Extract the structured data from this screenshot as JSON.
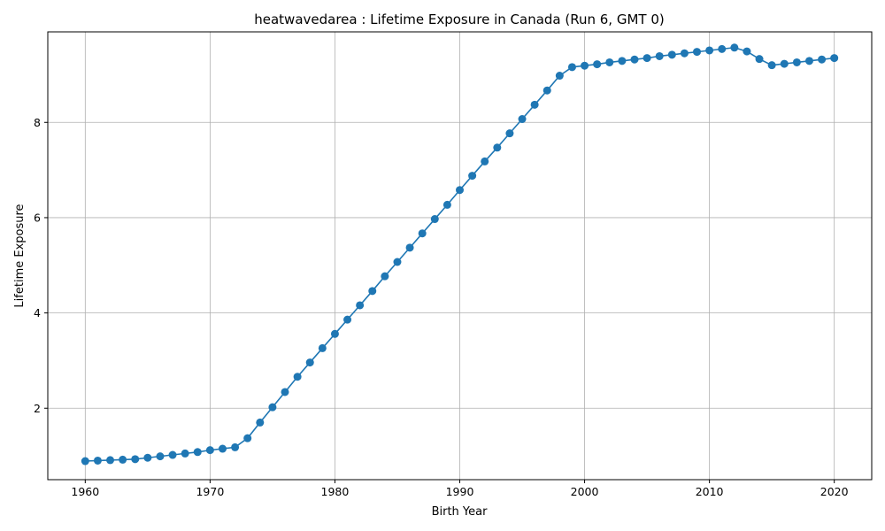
{
  "chart_data": {
    "type": "line",
    "title": "heatwavedarea : Lifetime Exposure in Canada (Run 6, GMT 0)",
    "xlabel": "Birth Year",
    "ylabel": "Lifetime Exposure",
    "xlim": [
      1957,
      2023
    ],
    "ylim": [
      0.5,
      9.9
    ],
    "xticks": [
      1960,
      1970,
      1980,
      1990,
      2000,
      2010,
      2020
    ],
    "yticks": [
      2,
      4,
      6,
      8
    ],
    "grid": true,
    "marker": "circle",
    "color": "#1f77b4",
    "series": [
      {
        "x": [
          1960,
          1961,
          1962,
          1963,
          1964,
          1965,
          1966,
          1967,
          1968,
          1969,
          1970,
          1971,
          1972,
          1973,
          1974,
          1975,
          1976,
          1977,
          1978,
          1979,
          1980,
          1981,
          1982,
          1983,
          1984,
          1985,
          1986,
          1987,
          1988,
          1989,
          1990,
          1991,
          1992,
          1993,
          1994,
          1995,
          1996,
          1997,
          1998,
          1999,
          2000,
          2001,
          2002,
          2003,
          2004,
          2005,
          2006,
          2007,
          2008,
          2009,
          2010,
          2011,
          2012,
          2013,
          2014,
          2015,
          2016,
          2017,
          2018,
          2019,
          2020
        ],
        "values": [
          0.89,
          0.9,
          0.91,
          0.92,
          0.93,
          0.96,
          0.99,
          1.02,
          1.05,
          1.08,
          1.12,
          1.15,
          1.18,
          1.37,
          1.7,
          2.02,
          2.34,
          2.66,
          2.96,
          3.26,
          3.56,
          3.86,
          4.16,
          4.46,
          4.77,
          5.07,
          5.37,
          5.67,
          5.97,
          6.27,
          6.58,
          6.88,
          7.18,
          7.47,
          7.77,
          8.07,
          8.37,
          8.67,
          8.98,
          9.16,
          9.19,
          9.22,
          9.26,
          9.29,
          9.32,
          9.35,
          9.39,
          9.42,
          9.45,
          9.48,
          9.51,
          9.54,
          9.57,
          9.49,
          9.33,
          9.2,
          9.23,
          9.26,
          9.29,
          9.32,
          9.35
        ]
      }
    ]
  }
}
